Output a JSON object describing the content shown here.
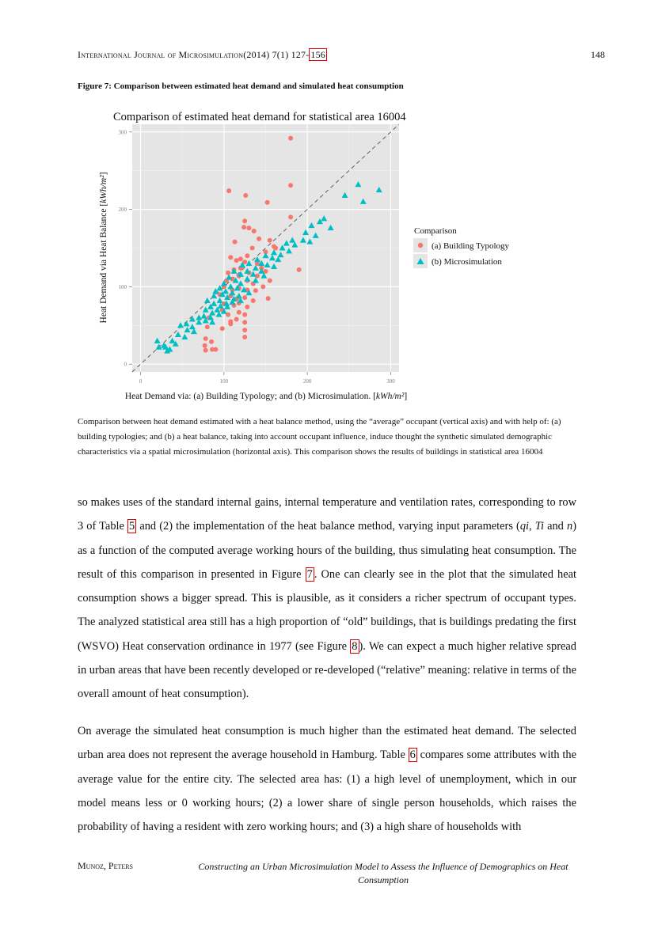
{
  "header": {
    "journal_pre": "International Journal of Microsimulation",
    "journal_post": "(2014) 7(1) 127-",
    "journal_link": "156",
    "page_number": "148"
  },
  "figure": {
    "title": "Figure 7: Comparison between estimated heat demand and simulated heat consumption",
    "caption": "Comparison between heat demand estimated with a heat balance method, using the “average” occupant (vertical axis) and with help of: (a) building typologies; and (b) a heat balance, taking into account occupant influence, induce thought the synthetic simulated demographic characteristics via a spatial microsimulation (horizontal axis). This comparison shows the results of buildings in statistical area 16004"
  },
  "chart_data": {
    "type": "scatter",
    "title": "Comparison of estimated heat demand for statistical area 16004",
    "xlabel": "Heat Demand via: (a) Building Typology; and (b) Microsimulation. [kWh/m²]",
    "ylabel": "Heat Demand via Heat Balance [kWh/m²]",
    "xlim": [
      -10,
      310
    ],
    "ylim": [
      -10,
      310
    ],
    "xticks": [
      0,
      100,
      200,
      300
    ],
    "yticks": [
      0,
      100,
      200,
      300
    ],
    "grid": true,
    "reference_line": "y = x (dashed)",
    "legend": {
      "title": "Comparison",
      "position": "right"
    },
    "series": [
      {
        "name": "(a) Building Typology",
        "color": "#F8766D",
        "marker": "circle",
        "points": [
          [
            180,
            292
          ],
          [
            106,
            224
          ],
          [
            126,
            218
          ],
          [
            180,
            231
          ],
          [
            152,
            209
          ],
          [
            180,
            190
          ],
          [
            125,
            185
          ],
          [
            124,
            177
          ],
          [
            130,
            176
          ],
          [
            136,
            172
          ],
          [
            113,
            158
          ],
          [
            142,
            162
          ],
          [
            155,
            160
          ],
          [
            134,
            150
          ],
          [
            150,
            145
          ],
          [
            160,
            152
          ],
          [
            162,
            150
          ],
          [
            108,
            138
          ],
          [
            115,
            134
          ],
          [
            120,
            136
          ],
          [
            128,
            140
          ],
          [
            125,
            132
          ],
          [
            140,
            130
          ],
          [
            145,
            124
          ],
          [
            150,
            120
          ],
          [
            190,
            122
          ],
          [
            105,
            118
          ],
          [
            112,
            122
          ],
          [
            120,
            124
          ],
          [
            130,
            118
          ],
          [
            140,
            114
          ],
          [
            155,
            108
          ],
          [
            103,
            108
          ],
          [
            110,
            110
          ],
          [
            118,
            114
          ],
          [
            128,
            108
          ],
          [
            135,
            104
          ],
          [
            147,
            100
          ],
          [
            100,
            100
          ],
          [
            110,
            96
          ],
          [
            118,
            98
          ],
          [
            128,
            96
          ],
          [
            138,
            95
          ],
          [
            95,
            90
          ],
          [
            108,
            88
          ],
          [
            116,
            85
          ],
          [
            125,
            86
          ],
          [
            135,
            82
          ],
          [
            153,
            85
          ],
          [
            100,
            78
          ],
          [
            112,
            76
          ],
          [
            118,
            79
          ],
          [
            128,
            74
          ],
          [
            98,
            70
          ],
          [
            105,
            64
          ],
          [
            118,
            67
          ],
          [
            125,
            64
          ],
          [
            82,
            60
          ],
          [
            108,
            55
          ],
          [
            115,
            58
          ],
          [
            125,
            54
          ],
          [
            80,
            48
          ],
          [
            98,
            46
          ],
          [
            125,
            44
          ],
          [
            108,
            52
          ],
          [
            125,
            35
          ],
          [
            78,
            33
          ],
          [
            85,
            29
          ],
          [
            77,
            24
          ],
          [
            86,
            19
          ],
          [
            78,
            18
          ],
          [
            90,
            19
          ]
        ]
      },
      {
        "name": "(b) Microsimulation",
        "color": "#00BFC4",
        "marker": "triangle",
        "points": [
          [
            286,
            225
          ],
          [
            261,
            232
          ],
          [
            245,
            218
          ],
          [
            267,
            210
          ],
          [
            220,
            188
          ],
          [
            215,
            184
          ],
          [
            205,
            179
          ],
          [
            228,
            176
          ],
          [
            198,
            170
          ],
          [
            210,
            166
          ],
          [
            182,
            160
          ],
          [
            195,
            160
          ],
          [
            203,
            158
          ],
          [
            175,
            156
          ],
          [
            185,
            154
          ],
          [
            170,
            150
          ],
          [
            178,
            146
          ],
          [
            160,
            144
          ],
          [
            168,
            141
          ],
          [
            150,
            140
          ],
          [
            158,
            137
          ],
          [
            165,
            135
          ],
          [
            140,
            135
          ],
          [
            145,
            130
          ],
          [
            152,
            128
          ],
          [
            160,
            126
          ],
          [
            130,
            130
          ],
          [
            138,
            124
          ],
          [
            145,
            120
          ],
          [
            122,
            128
          ],
          [
            128,
            120
          ],
          [
            135,
            116
          ],
          [
            148,
            114
          ],
          [
            112,
            120
          ],
          [
            120,
            116
          ],
          [
            128,
            110
          ],
          [
            138,
            108
          ],
          [
            106,
            112
          ],
          [
            114,
            108
          ],
          [
            120,
            104
          ],
          [
            100,
            104
          ],
          [
            108,
            100
          ],
          [
            116,
            98
          ],
          [
            124,
            96
          ],
          [
            130,
            92
          ],
          [
            95,
            98
          ],
          [
            102,
            94
          ],
          [
            110,
            92
          ],
          [
            118,
            88
          ],
          [
            90,
            94
          ],
          [
            98,
            90
          ],
          [
            104,
            86
          ],
          [
            112,
            84
          ],
          [
            88,
            88
          ],
          [
            95,
            82
          ],
          [
            103,
            78
          ],
          [
            110,
            80
          ],
          [
            120,
            82
          ],
          [
            80,
            82
          ],
          [
            88,
            78
          ],
          [
            96,
            75
          ],
          [
            104,
            74
          ],
          [
            84,
            74
          ],
          [
            92,
            70
          ],
          [
            100,
            68
          ],
          [
            78,
            70
          ],
          [
            86,
            66
          ],
          [
            94,
            64
          ],
          [
            76,
            62
          ],
          [
            84,
            60
          ],
          [
            70,
            60
          ],
          [
            78,
            56
          ],
          [
            86,
            54
          ],
          [
            62,
            58
          ],
          [
            70,
            54
          ],
          [
            55,
            52
          ],
          [
            62,
            48
          ],
          [
            48,
            50
          ],
          [
            56,
            44
          ],
          [
            64,
            42
          ],
          [
            45,
            38
          ],
          [
            53,
            35
          ],
          [
            38,
            30
          ],
          [
            42,
            26
          ],
          [
            30,
            22
          ],
          [
            35,
            19
          ],
          [
            32,
            17
          ],
          [
            20,
            30
          ],
          [
            22,
            22
          ],
          [
            28,
            24
          ]
        ]
      }
    ]
  },
  "body": {
    "p1_a": "so makes uses of the standard internal gains, internal temperature and ventilation rates, corresponding to row 3 of Table ",
    "p1_link_table5": "5",
    "p1_b": " and (2) the implementation of the heat balance method, varying input parameters (",
    "p1_qi": "qi",
    "p1_comma1": ", ",
    "p1_ti": "Ti",
    "p1_and": " and ",
    "p1_n": "n",
    "p1_c": ") as a function of the computed average working hours of the building, thus simulating heat consumption.  The result of this comparison in presented in Figure ",
    "p1_link_fig7": "7",
    "p1_d": ".  One can clearly see in the plot that the simulated heat consumption shows a bigger spread.  This is plausible, as it considers a richer spectrum of occupant types. The analyzed statistical area still has a high proportion of “old” buildings, that is buildings predating the first (WSVO) Heat conservation ordinance in 1977 (see Figure ",
    "p1_link_fig8": "8",
    "p1_e": "). We can expect a much higher relative spread in urban areas that have been recently developed or re-developed (“relative” meaning: relative in terms of the overall amount of heat consumption).",
    "p2_a": "On average the simulated heat consumption is much higher than the estimated heat demand. The selected urban area does not represent the average household in Hamburg. Table ",
    "p2_link_table6": "6",
    "p2_b": " compares some attributes with the average value for the entire city. The selected area has: (1) a high level of unemployment, which in our model means less or 0 working hours; (2) a lower share of single person households, which raises the probability of having a resident with zero working hours; and (3) a high share of households with"
  },
  "footer": {
    "authors": "Munoz, Peters",
    "title": "Constructing an Urban Microsimulation Model to Assess the Influence of Demographics on Heat Consumption"
  }
}
